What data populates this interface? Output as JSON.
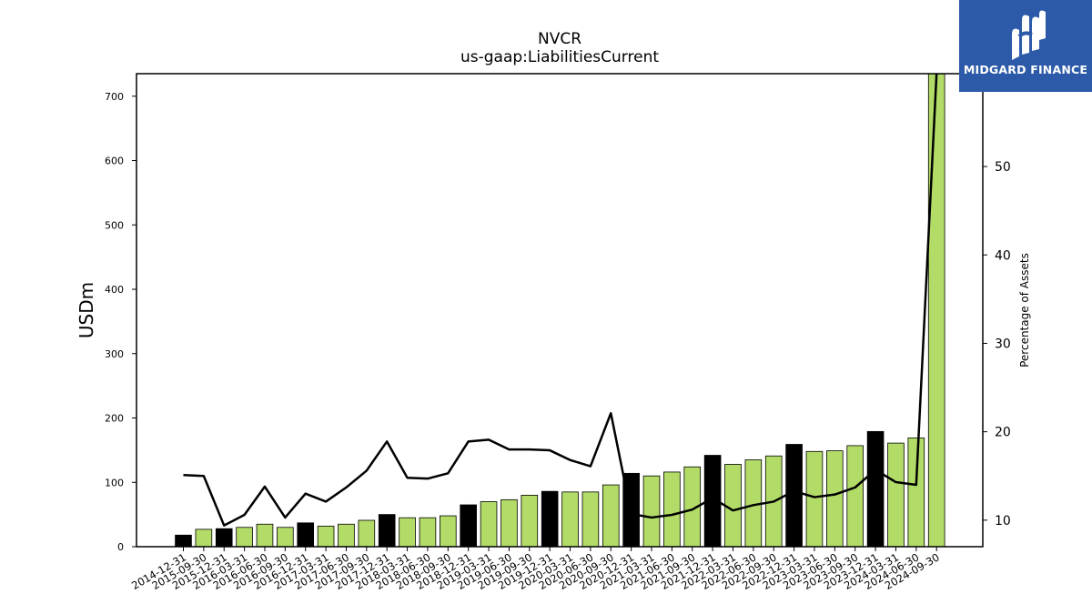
{
  "title": "NVCR",
  "subtitle": "us-gaap:LiabilitiesCurrent",
  "logo": {
    "text": "MIDGARD FINANCE",
    "icon": "midgard-logo-icon",
    "bg": "#2c5aa8"
  },
  "chart_data": {
    "type": "bar",
    "title": "NVCR",
    "subtitle": "us-gaap:LiabilitiesCurrent",
    "ylabel": "USDm",
    "y2label": "Percentage of Assets",
    "ylim": [
      0,
      735
    ],
    "y2lim": [
      7,
      60.5
    ],
    "yticks": [
      0,
      100,
      200,
      300,
      400,
      500,
      600,
      700
    ],
    "y2ticks": [
      10,
      20,
      30,
      40,
      50
    ],
    "colors": {
      "quarter": "#b2dc67",
      "year_end": "#000000",
      "line": "#000000"
    },
    "categories": [
      "2014-12-31",
      "2015-09-30",
      "2015-12-31",
      "2016-03-31",
      "2016-06-30",
      "2016-09-30",
      "2016-12-31",
      "2017-03-31",
      "2017-06-30",
      "2017-09-30",
      "2017-12-31",
      "2018-03-31",
      "2018-06-30",
      "2018-09-30",
      "2018-12-31",
      "2019-03-31",
      "2019-06-30",
      "2019-09-30",
      "2019-12-31",
      "2020-03-31",
      "2020-06-30",
      "2020-09-30",
      "2020-12-31",
      "2021-03-31",
      "2021-06-30",
      "2021-09-30",
      "2021-12-31",
      "2022-03-31",
      "2022-06-30",
      "2022-09-30",
      "2022-12-31",
      "2023-03-31",
      "2023-06-30",
      "2023-09-30",
      "2023-12-31",
      "2024-03-31",
      "2024-06-30",
      "2024-09-30"
    ],
    "series": [
      {
        "kind": "bar",
        "values": [
          18,
          27,
          28,
          30,
          35,
          30,
          37,
          32,
          35,
          41,
          50,
          45,
          45,
          48,
          65,
          70,
          73,
          80,
          86,
          85,
          85,
          96,
          114,
          110,
          116,
          124,
          142,
          128,
          135,
          141,
          159,
          148,
          149,
          157,
          179,
          161,
          169,
          735
        ],
        "year_end": [
          true,
          false,
          true,
          false,
          false,
          false,
          true,
          false,
          false,
          false,
          true,
          false,
          false,
          false,
          true,
          false,
          false,
          false,
          true,
          false,
          false,
          false,
          true,
          false,
          false,
          false,
          true,
          false,
          false,
          false,
          true,
          false,
          false,
          false,
          true,
          false,
          false,
          false
        ]
      },
      {
        "kind": "line",
        "values": [
          15.1,
          15.0,
          9.4,
          10.6,
          13.8,
          10.3,
          13.0,
          12.1,
          13.7,
          15.6,
          18.9,
          14.8,
          14.7,
          15.3,
          18.9,
          19.1,
          18.0,
          18.0,
          17.9,
          16.8,
          16.1,
          22.1,
          10.7,
          10.3,
          10.6,
          11.2,
          12.5,
          11.1,
          11.7,
          12.1,
          13.3,
          12.6,
          12.9,
          13.7,
          15.7,
          14.3,
          14.0,
          60.5
        ]
      }
    ]
  }
}
